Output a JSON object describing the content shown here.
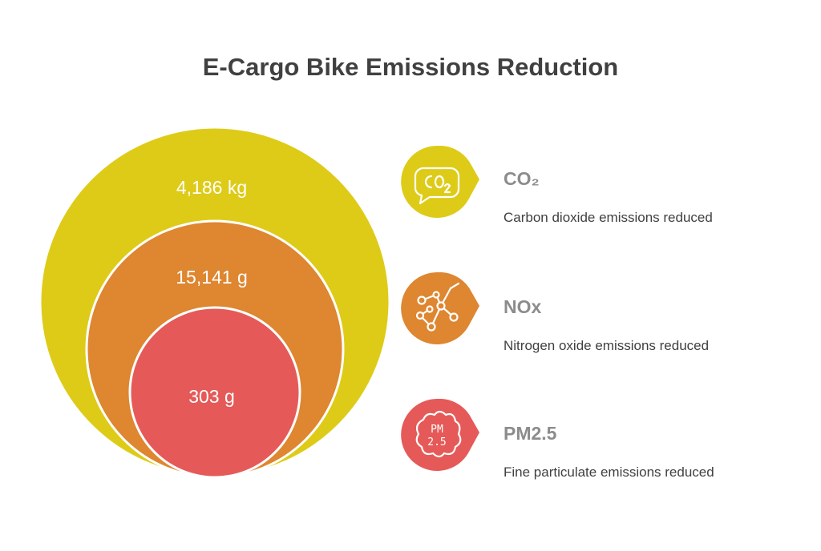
{
  "title": "E-Cargo Bike Emissions Reduction",
  "colors": {
    "outer": "#decb18",
    "middle": "#de8630",
    "inner": "#e55a58",
    "title_text": "#404040",
    "label_text": "#8c8c8c"
  },
  "circles": [
    {
      "value": "4,186 kg",
      "pollutant": "CO2"
    },
    {
      "value": "15,141 g",
      "pollutant": "NOx"
    },
    {
      "value": "303 g",
      "pollutant": "PM2.5"
    }
  ],
  "pollutants": [
    {
      "name": "CO₂",
      "description": "Carbon dioxide emissions reduced",
      "icon": "co2-speech-bubble-icon",
      "color": "#decb18"
    },
    {
      "name": "NOx",
      "description": "Nitrogen oxide emissions reduced",
      "icon": "molecule-icon",
      "color": "#de8630"
    },
    {
      "name": "PM2.5",
      "description": "Fine particulate emissions reduced",
      "icon": "pm25-cloud-icon",
      "color": "#e55a58"
    }
  ]
}
